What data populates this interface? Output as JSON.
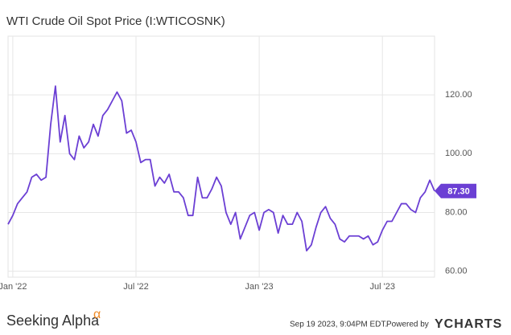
{
  "chart_data": {
    "type": "line",
    "title": "WTI Crude Oil Spot Price (I:WTICOSNK)",
    "categories": [
      null,
      "Jan '22",
      null,
      null,
      null,
      null,
      null,
      null,
      null,
      null,
      null,
      null,
      null,
      null,
      null,
      null,
      null,
      null,
      null,
      null,
      null,
      null,
      null,
      null,
      null,
      null,
      null,
      "Jul '22",
      null,
      null,
      null,
      null,
      null,
      null,
      null,
      null,
      null,
      null,
      null,
      null,
      null,
      null,
      null,
      null,
      null,
      null,
      null,
      null,
      null,
      null,
      null,
      null,
      null,
      "Jan '23",
      null,
      null,
      null,
      null,
      null,
      null,
      null,
      null,
      null,
      null,
      null,
      null,
      null,
      null,
      null,
      null,
      null,
      null,
      null,
      null,
      null,
      null,
      null,
      null,
      null,
      "Jul '23",
      null,
      null,
      null,
      null,
      null,
      null,
      null,
      null,
      null,
      null,
      null
    ],
    "series": [
      {
        "name": "WTI Crude Oil Spot Price",
        "color": "#6b3fd4",
        "values": [
          76,
          79,
          83,
          85,
          87,
          92,
          93,
          91,
          92,
          110,
          123,
          104,
          113,
          100,
          98,
          106,
          102,
          104,
          110,
          106,
          113,
          115,
          118,
          121,
          118,
          107,
          108,
          104,
          97,
          98,
          98,
          89,
          92,
          90,
          93,
          87,
          87,
          85,
          79,
          79,
          92,
          85,
          85,
          88,
          92,
          89,
          80,
          76,
          80,
          71,
          75,
          79,
          80,
          74,
          80,
          81,
          80,
          73,
          79,
          76,
          76,
          80,
          77,
          67,
          69,
          75,
          80,
          82,
          78,
          76,
          71,
          70,
          72,
          72,
          72,
          71,
          72,
          69,
          70,
          74,
          77,
          77,
          80,
          83,
          83,
          81,
          80,
          85,
          87,
          91,
          87.3
        ],
        "value_labels": [
          null,
          null,
          null,
          null,
          null,
          null,
          null,
          null,
          null,
          null,
          null,
          null,
          null,
          null,
          null,
          null,
          null,
          null,
          null,
          null,
          null,
          null,
          null,
          null,
          null,
          null,
          null,
          null,
          null,
          null,
          null,
          null,
          null,
          null,
          null,
          null,
          null,
          null,
          null,
          null,
          null,
          null,
          null,
          null,
          null,
          null,
          null,
          null,
          null,
          null,
          null,
          null,
          null,
          null,
          null,
          null,
          null,
          null,
          null,
          null,
          null,
          null,
          null,
          null,
          null,
          null,
          null,
          null,
          null,
          null,
          null,
          null,
          null,
          null,
          null,
          null,
          null,
          null,
          null,
          null,
          null,
          null,
          null,
          null,
          null,
          null,
          null,
          null,
          null,
          null,
          "87.30"
        ]
      }
    ],
    "ylim": [
      58,
      140
    ],
    "yticks": [
      {
        "value": 60,
        "label": "60.00"
      },
      {
        "value": 80,
        "label": "80.00"
      },
      {
        "value": 100,
        "label": "100.00"
      },
      {
        "value": 120,
        "label": "120.00"
      }
    ],
    "grid": true
  },
  "footer": {
    "brand": "Seeking Alpha",
    "brand_mark": "α",
    "timestamp": "Sep 19 2023, 9:04PM EDT.",
    "powered_by": "Powered by",
    "provider": "YCHARTS"
  }
}
